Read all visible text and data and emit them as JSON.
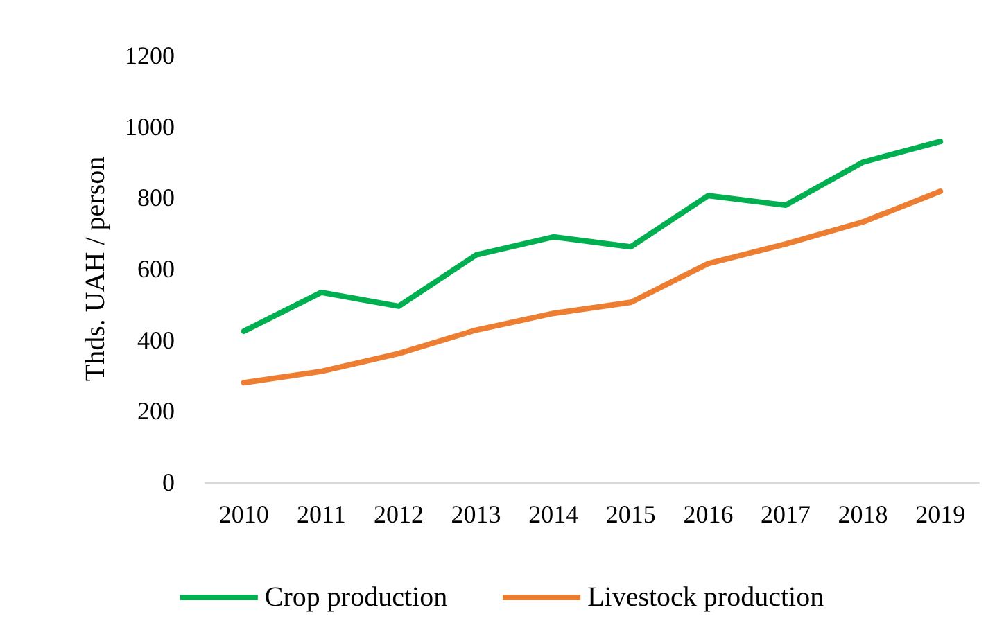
{
  "chart_data": {
    "type": "line",
    "ylabel": "Thds. UAH / person",
    "categories": [
      "2010",
      "2011",
      "2012",
      "2013",
      "2014",
      "2015",
      "2016",
      "2017",
      "2018",
      "2019"
    ],
    "series": [
      {
        "name": "Crop production",
        "color": "#00b050",
        "values": [
          425,
          534,
          495,
          639,
          690,
          662,
          806,
          779,
          900,
          958
        ]
      },
      {
        "name": "Livestock production",
        "color": "#ed7d31",
        "values": [
          280,
          312,
          362,
          428,
          475,
          506,
          615,
          670,
          732,
          818
        ]
      }
    ],
    "ylim": [
      0,
      1200
    ],
    "yticks": [
      0,
      200,
      400,
      600,
      800,
      1000,
      1200
    ],
    "grid": false,
    "legend": "bottom",
    "marker": "none",
    "line_style": "solid"
  }
}
